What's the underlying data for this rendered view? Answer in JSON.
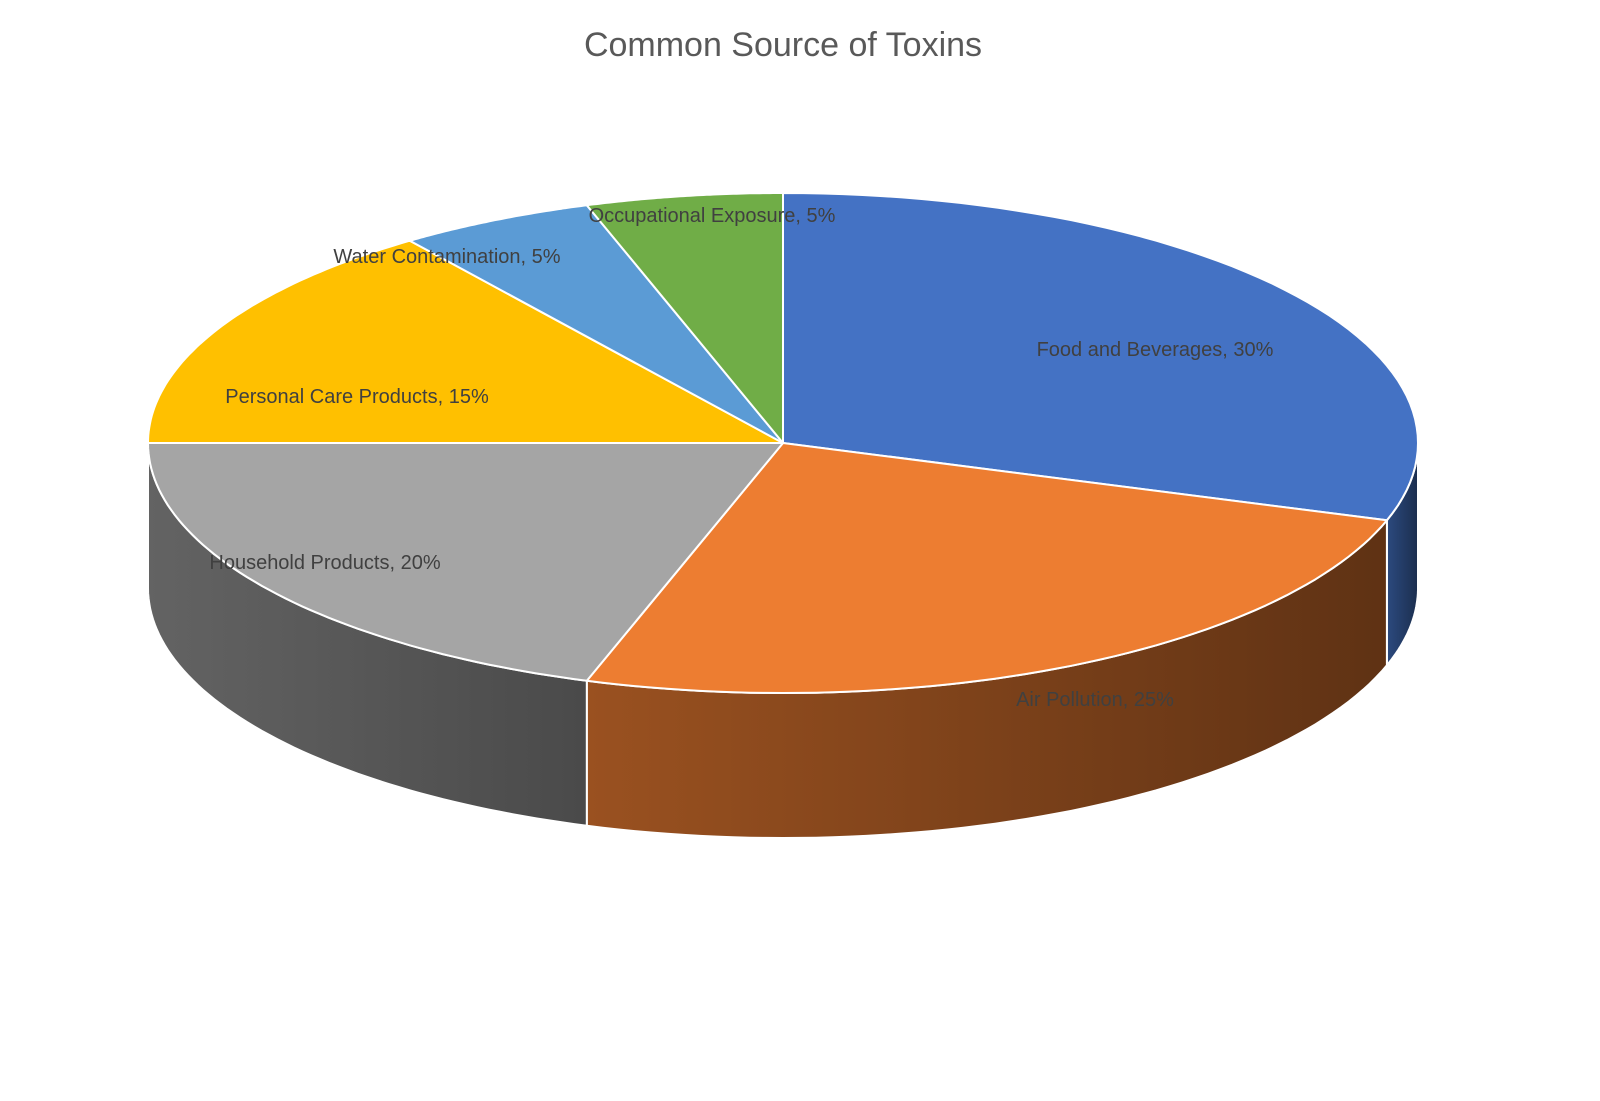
{
  "chart_data": {
    "type": "pie",
    "title": "Common Source of Toxins",
    "values": [
      30,
      25,
      20,
      15,
      5,
      5
    ],
    "value_labels": [
      "Food and Beverages, 30%",
      "Air Pollution, 25%",
      "Household Products, 20%",
      "Personal Care Products, 15%",
      "Water Contamination, 5%",
      "Occupational Exposure, 5%"
    ],
    "colors": [
      "#4472c4",
      "#ed7d31",
      "#a5a5a5",
      "#ffc000",
      "#5b9bd5",
      "#70ad47"
    ],
    "three_d": true
  }
}
